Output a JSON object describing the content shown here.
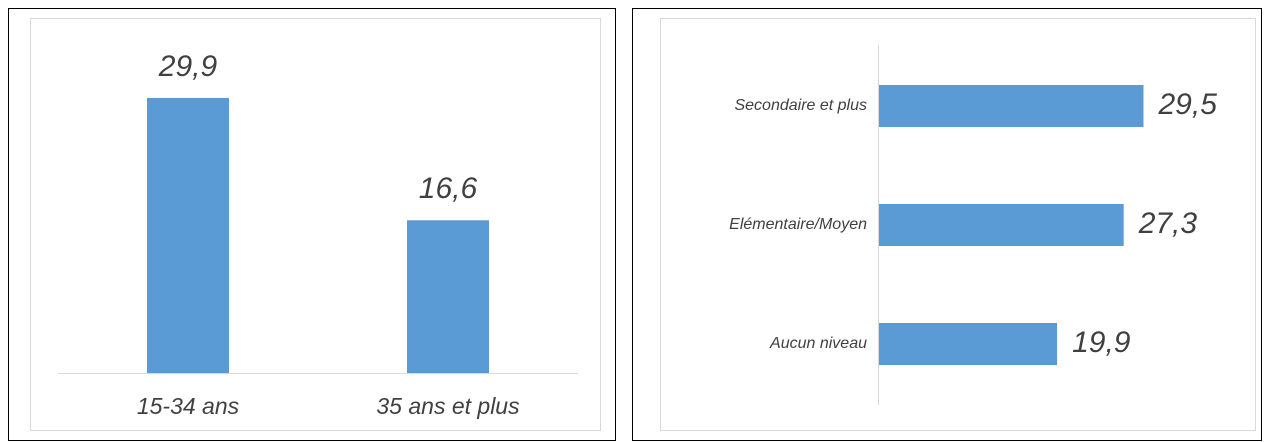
{
  "chart_data": [
    {
      "type": "bar",
      "categories": [
        "15-34 ans",
        "35 ans et plus"
      ],
      "values": [
        29.9,
        16.6
      ],
      "value_labels": [
        "29,9",
        "16,6"
      ],
      "color": "#5b9bd5",
      "ylim": [
        0,
        35
      ]
    },
    {
      "type": "hbar",
      "categories": [
        "Secondaire et plus",
        "Elémentaire/Moyen",
        "Aucun niveau"
      ],
      "values": [
        29.5,
        27.3,
        19.9
      ],
      "value_labels": [
        "29,5",
        "27,3",
        "19,9"
      ],
      "color": "#5b9bd5",
      "xlim": [
        0,
        40
      ]
    }
  ]
}
